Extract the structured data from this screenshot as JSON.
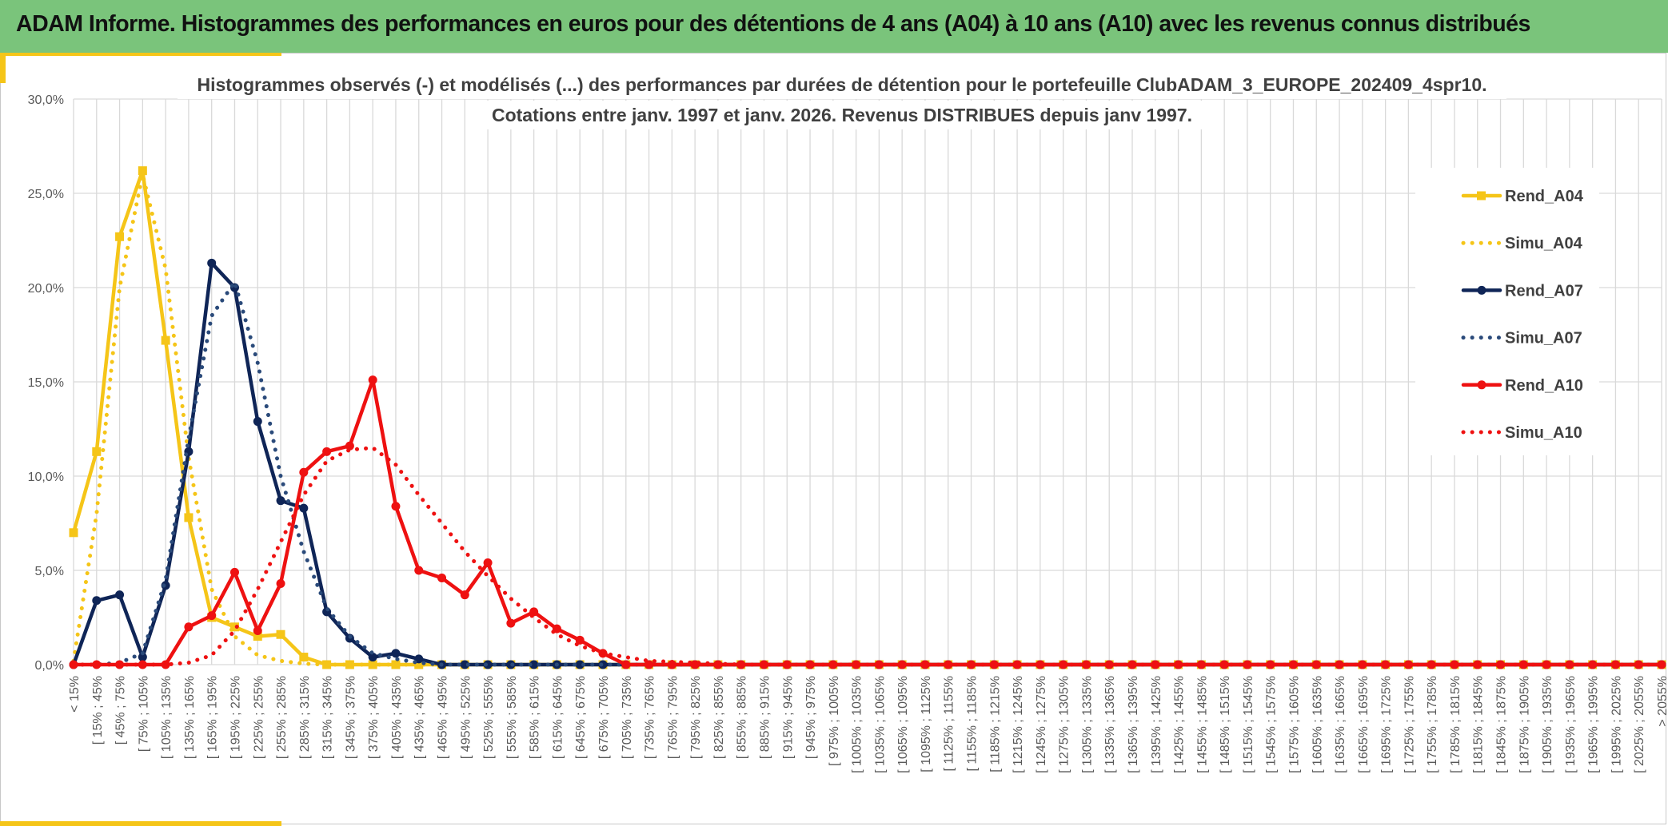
{
  "header": {
    "title": "ADAM Informe. Histogrammes des performances en euros pour des détentions de 4 ans (A04) à 10 ans (A10) avec les revenus connus distribués"
  },
  "colors": {
    "header_bg": "#7ac47b",
    "accent_gold": "#f5c518",
    "A04": "#f5c518",
    "A07": "#0f2557",
    "A07_simu": "#2a4a7a",
    "A10": "#ee1111"
  },
  "chart_data": {
    "type": "line",
    "title": "Histogrammes observés (-) et modélisés (...) des performances par durées de détention pour le portefeuille ClubADAM_3_EUROPE_202409_4spr10.",
    "subtitle": "Cotations entre janv. 1997 et janv. 2026. Revenus DISTRIBUES depuis janv 1997.",
    "ylim": [
      0,
      30
    ],
    "yticks": [
      "0,0%",
      "5,0%",
      "10,0%",
      "15,0%",
      "20,0%",
      "25,0%",
      "30,0%"
    ],
    "grid": true,
    "legend_position": "right",
    "categories": [
      "< 15%",
      "[ 15% ; 45%",
      "[ 45% ; 75%",
      "[ 75% ; 105%",
      "[ 105% ; 135%",
      "[ 135% ; 165%",
      "[ 165% ; 195%",
      "[ 195% ; 225%",
      "[ 225% ; 255%",
      "[ 255% ; 285%",
      "[ 285% ; 315%",
      "[ 315% ; 345%",
      "[ 345% ; 375%",
      "[ 375% ; 405%",
      "[ 405% ; 435%",
      "[ 435% ; 465%",
      "[ 465% ; 495%",
      "[ 495% ; 525%",
      "[ 525% ; 555%",
      "[ 555% ; 585%",
      "[ 585% ; 615%",
      "[ 615% ; 645%",
      "[ 645% ; 675%",
      "[ 675% ; 705%",
      "[ 705% ; 735%",
      "[ 735% ; 765%",
      "[ 765% ; 795%",
      "[ 795% ; 825%",
      "[ 825% ; 855%",
      "[ 855% ; 885%",
      "[ 885% ; 915%",
      "[ 915% ; 945%",
      "[ 945% ; 975%",
      "[ 975% ; 1005%",
      "[ 1005% ; 1035%",
      "[ 1035% ; 1065%",
      "[ 1065% ; 1095%",
      "[ 1095% ; 1125%",
      "[ 1125% ; 1155%",
      "[ 1155% ; 1185%",
      "[ 1185% ; 1215%",
      "[ 1215% ; 1245%",
      "[ 1245% ; 1275%",
      "[ 1275% ; 1305%",
      "[ 1305% ; 1335%",
      "[ 1335% ; 1365%",
      "[ 1365% ; 1395%",
      "[ 1395% ; 1425%",
      "[ 1425% ; 1455%",
      "[ 1455% ; 1485%",
      "[ 1485% ; 1515%",
      "[ 1515% ; 1545%",
      "[ 1545% ; 1575%",
      "[ 1575% ; 1605%",
      "[ 1605% ; 1635%",
      "[ 1635% ; 1665%",
      "[ 1665% ; 1695%",
      "[ 1695% ; 1725%",
      "[ 1725% ; 1755%",
      "[ 1755% ; 1785%",
      "[ 1785% ; 1815%",
      "[ 1815% ; 1845%",
      "[ 1845% ; 1875%",
      "[ 1875% ; 1905%",
      "[ 1905% ; 1935%",
      "[ 1935% ; 1965%",
      "[ 1965% ; 1995%",
      "[ 1995% ; 2025%",
      "[ 2025% ; 2055%",
      "> 2055%"
    ],
    "series": [
      {
        "name": "Rend_A04",
        "style": "solid",
        "marker": "square",
        "color": "#f5c518",
        "values": [
          7.0,
          11.3,
          22.7,
          26.2,
          17.2,
          7.8,
          2.5,
          2.0,
          1.5,
          1.6,
          0.4,
          0.0,
          0.0,
          0.0,
          0.0,
          0.0,
          0.0,
          0.0,
          0.0,
          0.0,
          0.0,
          0.0,
          0.0,
          0.0,
          0.0,
          0.0,
          0.0,
          0.0,
          0.0,
          0.0,
          0.0,
          0.0,
          0.0,
          0.0,
          0.0,
          0.0,
          0.0,
          0.0,
          0.0,
          0.0,
          0.0,
          0.0,
          0.0,
          0.0,
          0.0,
          0.0,
          0.0,
          0.0,
          0.0,
          0.0,
          0.0,
          0.0,
          0.0,
          0.0,
          0.0,
          0.0,
          0.0,
          0.0,
          0.0,
          0.0,
          0.0,
          0.0,
          0.0,
          0.0,
          0.0,
          0.0,
          0.0,
          0.0,
          0.0,
          0.0
        ]
      },
      {
        "name": "Simu_A04",
        "style": "dotted",
        "marker": "none",
        "color": "#f5c518",
        "values": [
          0.2,
          8.0,
          20.0,
          26.0,
          21.0,
          11.0,
          4.0,
          1.5,
          0.5,
          0.2,
          0.05,
          0.0,
          0.0,
          0.0,
          0.0,
          0.0,
          0.0,
          0.0,
          0.0,
          0.0,
          0.0,
          0.0,
          0.0,
          0.0,
          0.0,
          0.0,
          0.0,
          0.0,
          0.0,
          0.0,
          0.0,
          0.0,
          0.0,
          0.0,
          0.0,
          0.0,
          0.0,
          0.0,
          0.0,
          0.0,
          0.0,
          0.0,
          0.0,
          0.0,
          0.0,
          0.0,
          0.0,
          0.0,
          0.0,
          0.0,
          0.0,
          0.0,
          0.0,
          0.0,
          0.0,
          0.0,
          0.0,
          0.0,
          0.0,
          0.0,
          0.0,
          0.0,
          0.0,
          0.0,
          0.0,
          0.0,
          0.0,
          0.0,
          0.0,
          0.0
        ]
      },
      {
        "name": "Rend_A07",
        "style": "solid",
        "marker": "circle",
        "color": "#0f2557",
        "values": [
          0.0,
          3.4,
          3.7,
          0.4,
          4.2,
          11.3,
          21.3,
          20.0,
          12.9,
          8.7,
          8.3,
          2.8,
          1.4,
          0.4,
          0.6,
          0.3,
          0.0,
          0.0,
          0.0,
          0.0,
          0.0,
          0.0,
          0.0,
          0.0,
          0.0,
          0.0,
          0.0,
          0.0,
          0.0,
          0.0,
          0.0,
          0.0,
          0.0,
          0.0,
          0.0,
          0.0,
          0.0,
          0.0,
          0.0,
          0.0,
          0.0,
          0.0,
          0.0,
          0.0,
          0.0,
          0.0,
          0.0,
          0.0,
          0.0,
          0.0,
          0.0,
          0.0,
          0.0,
          0.0,
          0.0,
          0.0,
          0.0,
          0.0,
          0.0,
          0.0,
          0.0,
          0.0,
          0.0,
          0.0,
          0.0,
          0.0,
          0.0,
          0.0,
          0.0,
          0.0
        ]
      },
      {
        "name": "Simu_A07",
        "style": "dotted",
        "marker": "none",
        "color": "#2a4a7a",
        "values": [
          0.0,
          0.0,
          0.1,
          0.6,
          4.5,
          12.0,
          18.5,
          20.3,
          16.0,
          10.0,
          6.0,
          3.0,
          1.5,
          0.6,
          0.3,
          0.1,
          0.0,
          0.0,
          0.0,
          0.0,
          0.0,
          0.0,
          0.0,
          0.0,
          0.0,
          0.0,
          0.0,
          0.0,
          0.0,
          0.0,
          0.0,
          0.0,
          0.0,
          0.0,
          0.0,
          0.0,
          0.0,
          0.0,
          0.0,
          0.0,
          0.0,
          0.0,
          0.0,
          0.0,
          0.0,
          0.0,
          0.0,
          0.0,
          0.0,
          0.0,
          0.0,
          0.0,
          0.0,
          0.0,
          0.0,
          0.0,
          0.0,
          0.0,
          0.0,
          0.0,
          0.0,
          0.0,
          0.0,
          0.0,
          0.0,
          0.0,
          0.0,
          0.0,
          0.0,
          0.0
        ]
      },
      {
        "name": "Rend_A10",
        "style": "solid",
        "marker": "circle",
        "color": "#ee1111",
        "values": [
          0.0,
          0.0,
          0.0,
          0.0,
          0.0,
          2.0,
          2.6,
          4.9,
          1.8,
          4.3,
          10.2,
          11.3,
          11.6,
          15.1,
          8.4,
          5.0,
          4.6,
          3.7,
          5.4,
          2.2,
          2.8,
          1.9,
          1.3,
          0.6,
          0.0,
          0.0,
          0.0,
          0.0,
          0.0,
          0.0,
          0.0,
          0.0,
          0.0,
          0.0,
          0.0,
          0.0,
          0.0,
          0.0,
          0.0,
          0.0,
          0.0,
          0.0,
          0.0,
          0.0,
          0.0,
          0.0,
          0.0,
          0.0,
          0.0,
          0.0,
          0.0,
          0.0,
          0.0,
          0.0,
          0.0,
          0.0,
          0.0,
          0.0,
          0.0,
          0.0,
          0.0,
          0.0,
          0.0,
          0.0,
          0.0,
          0.0,
          0.0,
          0.0,
          0.0,
          0.0
        ]
      },
      {
        "name": "Simu_A10",
        "style": "dotted",
        "marker": "none",
        "color": "#ee1111",
        "values": [
          0.0,
          0.0,
          0.0,
          0.0,
          0.0,
          0.1,
          0.5,
          1.8,
          4.0,
          6.5,
          9.0,
          10.8,
          11.4,
          11.5,
          10.6,
          9.0,
          7.5,
          6.0,
          4.7,
          3.5,
          2.5,
          1.6,
          1.0,
          0.6,
          0.4,
          0.2,
          0.15,
          0.1,
          0.05,
          0.0,
          0.0,
          0.0,
          0.0,
          0.0,
          0.0,
          0.0,
          0.0,
          0.0,
          0.0,
          0.0,
          0.0,
          0.0,
          0.0,
          0.0,
          0.0,
          0.0,
          0.0,
          0.0,
          0.0,
          0.0,
          0.0,
          0.0,
          0.0,
          0.0,
          0.0,
          0.0,
          0.0,
          0.0,
          0.0,
          0.0,
          0.0,
          0.0,
          0.0,
          0.0,
          0.0,
          0.0,
          0.0,
          0.0,
          0.0,
          0.0
        ]
      }
    ]
  }
}
